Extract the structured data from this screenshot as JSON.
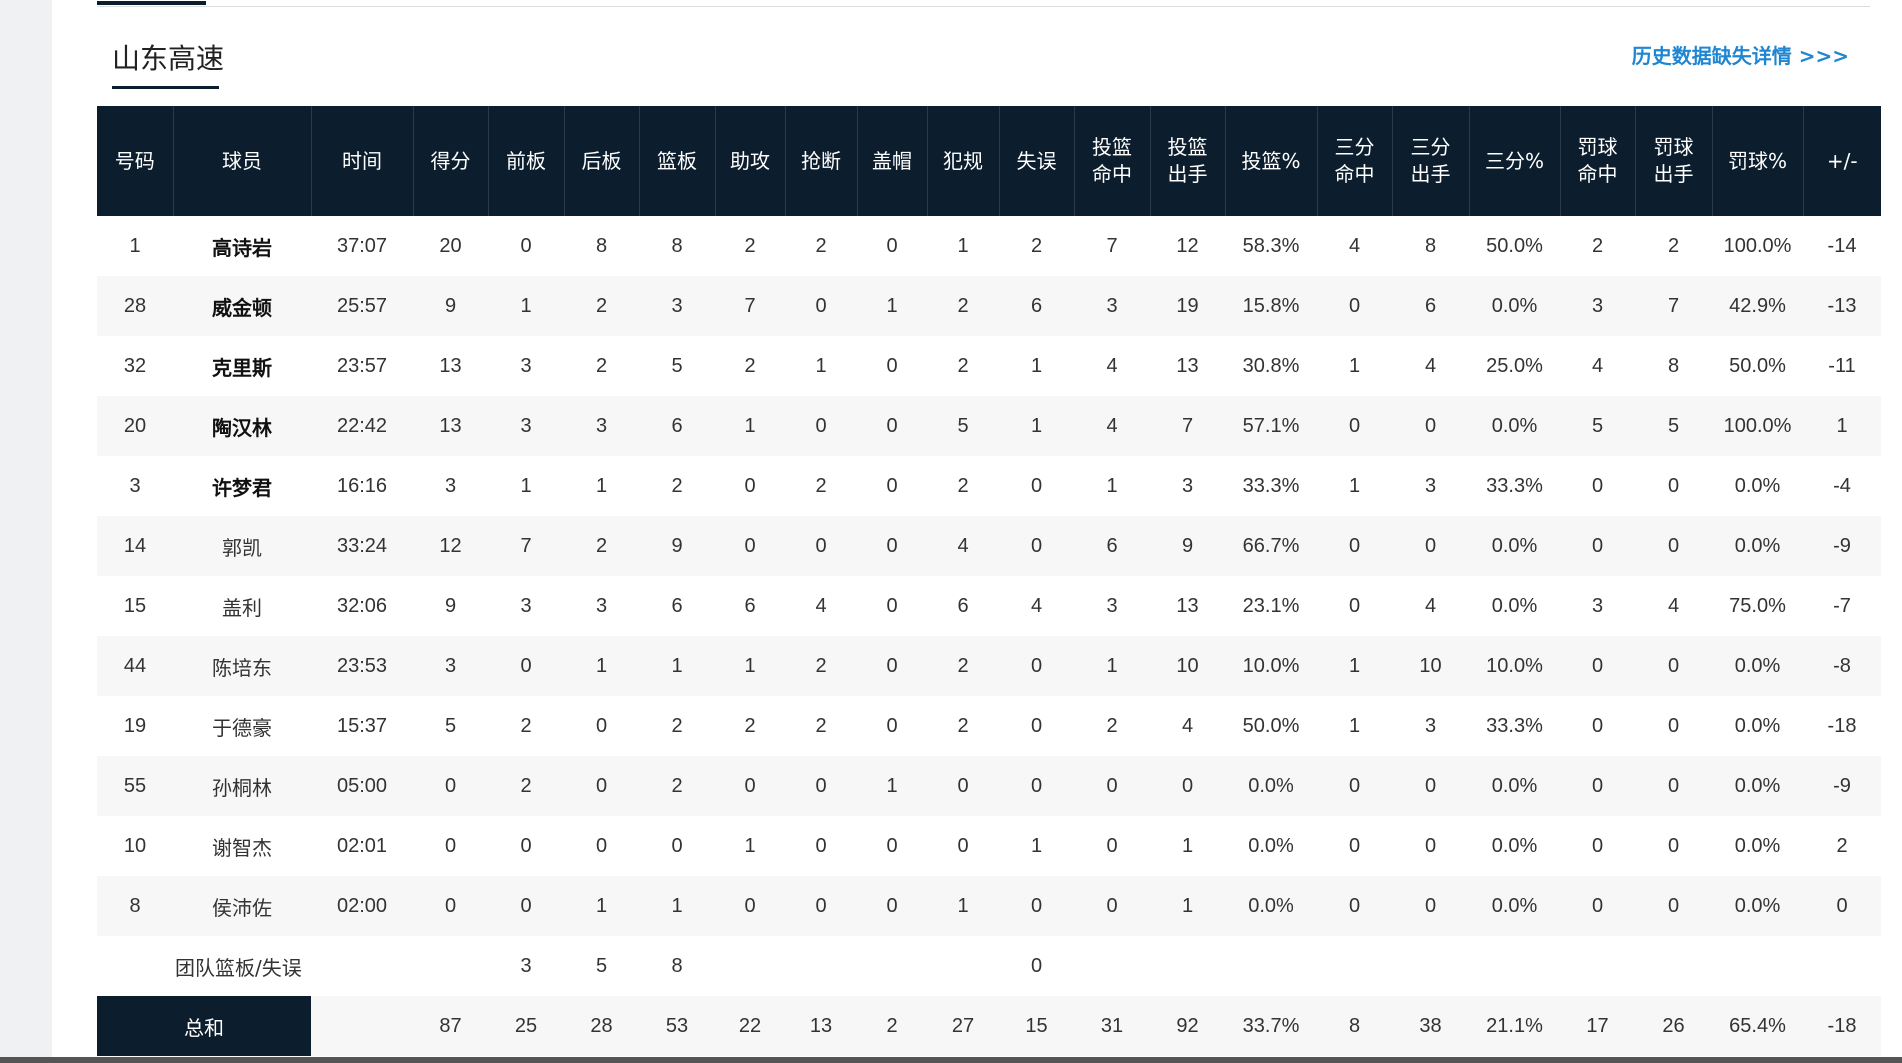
{
  "section_title": "山东高速",
  "history_link": "历史数据缺失详情 >>>",
  "columns": [
    "号码",
    "球员",
    "时间",
    "得分",
    "前板",
    "后板",
    "篮板",
    "助攻",
    "抢断",
    "盖帽",
    "犯规",
    "失误",
    "投篮\n命中",
    "投篮\n出手",
    "投篮%",
    "三分\n命中",
    "三分\n出手",
    "三分%",
    "罚球\n命中",
    "罚球\n出手",
    "罚球%",
    "+/-"
  ],
  "players": [
    {
      "starter": true,
      "cells": [
        "1",
        "高诗岩",
        "37:07",
        "20",
        "0",
        "8",
        "8",
        "2",
        "2",
        "0",
        "1",
        "2",
        "7",
        "12",
        "58.3%",
        "4",
        "8",
        "50.0%",
        "2",
        "2",
        "100.0%",
        "-14"
      ]
    },
    {
      "starter": true,
      "cells": [
        "28",
        "威金顿",
        "25:57",
        "9",
        "1",
        "2",
        "3",
        "7",
        "0",
        "1",
        "2",
        "6",
        "3",
        "19",
        "15.8%",
        "0",
        "6",
        "0.0%",
        "3",
        "7",
        "42.9%",
        "-13"
      ]
    },
    {
      "starter": true,
      "cells": [
        "32",
        "克里斯",
        "23:57",
        "13",
        "3",
        "2",
        "5",
        "2",
        "1",
        "0",
        "2",
        "1",
        "4",
        "13",
        "30.8%",
        "1",
        "4",
        "25.0%",
        "4",
        "8",
        "50.0%",
        "-11"
      ]
    },
    {
      "starter": true,
      "cells": [
        "20",
        "陶汉林",
        "22:42",
        "13",
        "3",
        "3",
        "6",
        "1",
        "0",
        "0",
        "5",
        "1",
        "4",
        "7",
        "57.1%",
        "0",
        "0",
        "0.0%",
        "5",
        "5",
        "100.0%",
        "1"
      ]
    },
    {
      "starter": true,
      "cells": [
        "3",
        "许梦君",
        "16:16",
        "3",
        "1",
        "1",
        "2",
        "0",
        "2",
        "0",
        "2",
        "0",
        "1",
        "3",
        "33.3%",
        "1",
        "3",
        "33.3%",
        "0",
        "0",
        "0.0%",
        "-4"
      ]
    },
    {
      "starter": false,
      "cells": [
        "14",
        "郭凯",
        "33:24",
        "12",
        "7",
        "2",
        "9",
        "0",
        "0",
        "0",
        "4",
        "0",
        "6",
        "9",
        "66.7%",
        "0",
        "0",
        "0.0%",
        "0",
        "0",
        "0.0%",
        "-9"
      ]
    },
    {
      "starter": false,
      "cells": [
        "15",
        "盖利",
        "32:06",
        "9",
        "3",
        "3",
        "6",
        "6",
        "4",
        "0",
        "6",
        "4",
        "3",
        "13",
        "23.1%",
        "0",
        "4",
        "0.0%",
        "3",
        "4",
        "75.0%",
        "-7"
      ]
    },
    {
      "starter": false,
      "cells": [
        "44",
        "陈培东",
        "23:53",
        "3",
        "0",
        "1",
        "1",
        "1",
        "2",
        "0",
        "2",
        "0",
        "1",
        "10",
        "10.0%",
        "1",
        "10",
        "10.0%",
        "0",
        "0",
        "0.0%",
        "-8"
      ]
    },
    {
      "starter": false,
      "cells": [
        "19",
        "于德豪",
        "15:37",
        "5",
        "2",
        "0",
        "2",
        "2",
        "2",
        "0",
        "2",
        "0",
        "2",
        "4",
        "50.0%",
        "1",
        "3",
        "33.3%",
        "0",
        "0",
        "0.0%",
        "-18"
      ]
    },
    {
      "starter": false,
      "cells": [
        "55",
        "孙桐林",
        "05:00",
        "0",
        "2",
        "0",
        "2",
        "0",
        "0",
        "1",
        "0",
        "0",
        "0",
        "0",
        "0.0%",
        "0",
        "0",
        "0.0%",
        "0",
        "0",
        "0.0%",
        "-9"
      ]
    },
    {
      "starter": false,
      "cells": [
        "10",
        "谢智杰",
        "02:01",
        "0",
        "0",
        "0",
        "0",
        "1",
        "0",
        "0",
        "0",
        "1",
        "0",
        "1",
        "0.0%",
        "0",
        "0",
        "0.0%",
        "0",
        "0",
        "0.0%",
        "2"
      ]
    },
    {
      "starter": false,
      "cells": [
        "8",
        "侯沛佐",
        "02:00",
        "0",
        "0",
        "1",
        "1",
        "0",
        "0",
        "0",
        "1",
        "0",
        "0",
        "1",
        "0.0%",
        "0",
        "0",
        "0.0%",
        "0",
        "0",
        "0.0%",
        "0"
      ]
    }
  ],
  "team_row": {
    "label": "团队篮板/失误",
    "offensive_rebounds": "3",
    "defensive_rebounds": "5",
    "rebounds": "8",
    "turnovers": "0"
  },
  "total_row": {
    "label": "总和",
    "cells": [
      "87",
      "25",
      "28",
      "53",
      "22",
      "13",
      "2",
      "27",
      "15",
      "31",
      "92",
      "33.7%",
      "8",
      "38",
      "21.1%",
      "17",
      "26",
      "65.4%",
      "-18"
    ]
  }
}
